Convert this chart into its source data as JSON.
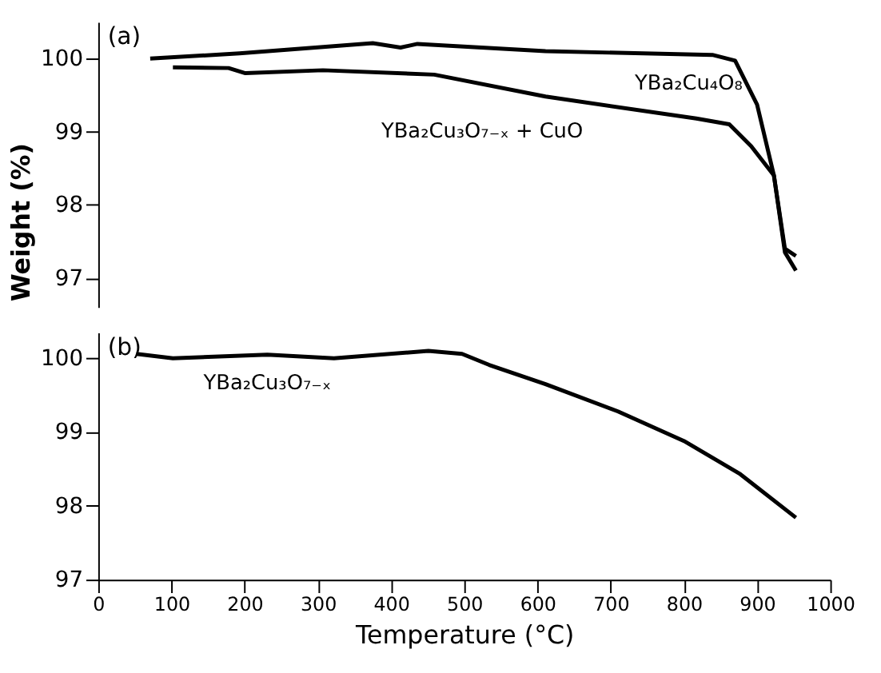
{
  "chart_data": [
    {
      "type": "line",
      "annotations": [
        "(a)"
      ],
      "xlim": [
        0,
        1000
      ],
      "ylim": [
        96.6,
        100.5
      ],
      "yticks": [
        97,
        98,
        99,
        100
      ],
      "tick_labels": "y",
      "grid": false,
      "marker": "none",
      "line_style": "solid",
      "series": [
        {
          "name": "YBa₂Cu₄O₈",
          "color": "#000000",
          "x": [
            71,
            193,
            375,
            413,
            436,
            611,
            839,
            870,
            900,
            923,
            938,
            953
          ],
          "values": [
            100.0,
            100.07,
            100.21,
            100.15,
            100.2,
            100.1,
            100.05,
            99.97,
            99.37,
            98.4,
            97.35,
            97.1
          ]
        },
        {
          "name": "YBa₂Cu₃O₇₋ₓ + CuO",
          "color": "#000000",
          "x": [
            953,
            938,
            923,
            892,
            862,
            817,
            611,
            459,
            307,
            201,
            178,
            102
          ],
          "values": [
            97.3,
            97.4,
            98.4,
            98.8,
            99.1,
            99.18,
            99.48,
            99.78,
            99.84,
            99.8,
            99.87,
            99.88
          ]
        }
      ]
    },
    {
      "type": "line",
      "annotations": [
        "(b)"
      ],
      "xlabel": "Temperature (°C)",
      "ylabel": "Weight (%)",
      "xlim": [
        0,
        1000
      ],
      "xticks": [
        0,
        100,
        200,
        300,
        400,
        500,
        600,
        700,
        800,
        900,
        1000
      ],
      "ylim": [
        97,
        100.35
      ],
      "yticks": [
        97,
        98,
        99,
        100
      ],
      "grid": false,
      "marker": "none",
      "line_style": "solid",
      "series": [
        {
          "name": "YBa₂Cu₃O₇₋ₓ",
          "color": "#000000",
          "x": [
            52,
            102,
            231,
            322,
            451,
            497,
            534,
            611,
            710,
            800,
            877,
            953
          ],
          "values": [
            100.06,
            100.0,
            100.05,
            100.0,
            100.1,
            100.06,
            99.91,
            99.65,
            99.28,
            98.88,
            98.43,
            97.84
          ]
        }
      ]
    }
  ]
}
